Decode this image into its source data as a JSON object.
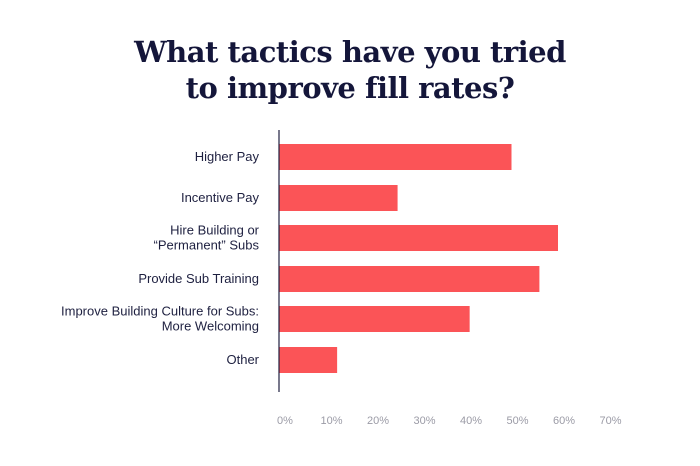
{
  "chart_data": {
    "type": "bar",
    "orientation": "horizontal",
    "title_lines": [
      "What tactics have you tried",
      "to improve fill rates?"
    ],
    "categories": [
      [
        "Higher Pay"
      ],
      [
        "Incentive Pay"
      ],
      [
        "Hire Building or",
        "“Permanent” Subs"
      ],
      [
        "Provide Sub Training"
      ],
      [
        "Improve Building Culture for Subs:",
        "More Welcoming"
      ],
      [
        "Other"
      ]
    ],
    "values": [
      50,
      25.5,
      60,
      56,
      41,
      12.5
    ],
    "xlim": [
      0,
      70
    ],
    "ticks": [
      "0%",
      "10%",
      "20%",
      "30%",
      "40%",
      "50%",
      "60%",
      "70%"
    ],
    "grid": false,
    "bar_color": "#fb5457",
    "axis_color": "#1e2040"
  }
}
